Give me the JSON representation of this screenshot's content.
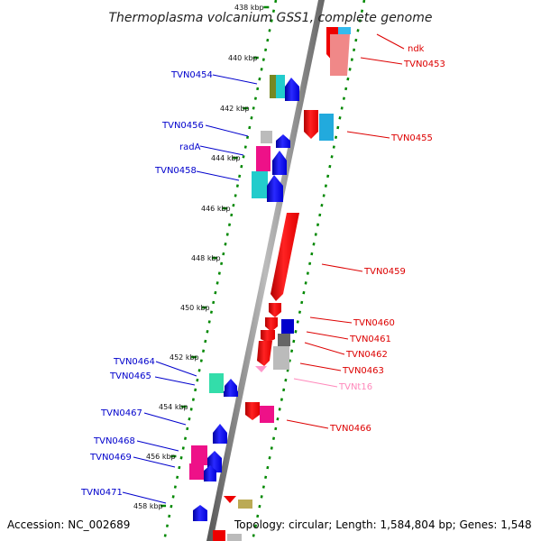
{
  "title": "Thermoplasma volcanium GSS1, complete genome",
  "footer": {
    "accession": "Accession: NC_002689",
    "topology": "Topology: circular; Length: 1,584,804 bp; Genes: 1,548"
  },
  "kbp_ticks": {
    "t438": "438 kbp",
    "t440": "440 kbp",
    "t442": "442 kbp",
    "t444": "444 kbp",
    "t446": "446 kbp",
    "t448": "448 kbp",
    "t450": "450 kbp",
    "t452": "452 kbp",
    "t454": "454 kbp",
    "t456": "456 kbp",
    "t458": "458 kbp"
  },
  "genes": {
    "ndk": "ndk",
    "TVN0453": "TVN0453",
    "TVN0454": "TVN0454",
    "TVN0455": "TVN0455",
    "TVN0456": "TVN0456",
    "radA": "radA",
    "TVN0458": "TVN0458",
    "TVN0459": "TVN0459",
    "TVN0460": "TVN0460",
    "TVN0461": "TVN0461",
    "TVN0462": "TVN0462",
    "TVN0463": "TVN0463",
    "TVNt16": "TVNt16",
    "TVN0464": "TVN0464",
    "TVN0465": "TVN0465",
    "TVN0466": "TVN0466",
    "TVN0467": "TVN0467",
    "TVN0468": "TVN0468",
    "TVN0469": "TVN0469",
    "TVN0471": "TVN0471"
  },
  "colors": {
    "forward_strand": "#0000ee",
    "reverse_strand": "#ee0000",
    "trna": "#ff99cc",
    "backbone": "#888888",
    "tick": "#008800"
  }
}
